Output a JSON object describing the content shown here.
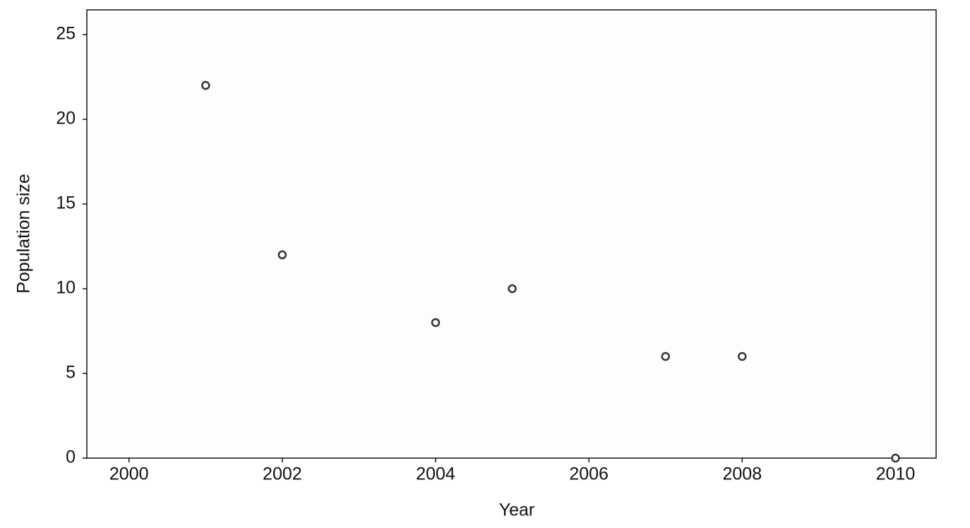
{
  "chart_data": {
    "type": "scatter",
    "x_label": "Year",
    "y_label": "Population size",
    "x": [
      2001,
      2002,
      2004,
      2005,
      2007,
      2008,
      2010
    ],
    "y": [
      22,
      12,
      8,
      10,
      6,
      6,
      0
    ],
    "color": "#333333",
    "xlim": [
      1999.45,
      2010.53
    ],
    "xticks": [
      2000,
      2002,
      2004,
      2006,
      2008,
      2010
    ],
    "ylim": [
      0,
      26.46
    ],
    "yticks": [
      0,
      5,
      10,
      15,
      20,
      25
    ],
    "grid": false
  }
}
